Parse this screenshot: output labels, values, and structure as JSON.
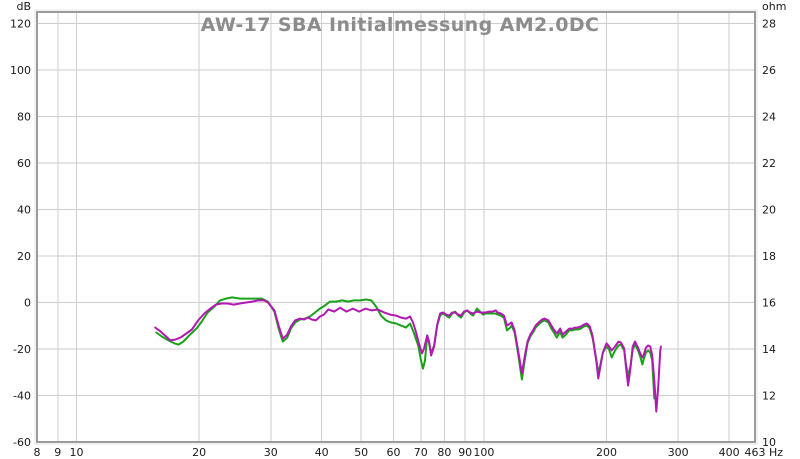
{
  "chart_data": {
    "type": "line",
    "title": "AW-17 SBA Initialmessung AM2.0DC",
    "title_color": "#8c8c8c",
    "background_color": "#ffffff",
    "grid_color": "#cdcdcd",
    "frame_color": "#9b9b9b",
    "legend": "none",
    "x_axis": {
      "unit": "Hz",
      "scale": "log",
      "min": 8,
      "max": 463,
      "tick_labels": [
        8,
        9,
        10,
        20,
        30,
        40,
        50,
        60,
        70,
        80,
        90,
        100,
        200,
        300,
        400,
        463
      ],
      "gridlines": [
        9,
        10,
        20,
        30,
        40,
        50,
        60,
        70,
        80,
        90,
        100,
        200,
        300,
        400
      ]
    },
    "y_axis_left": {
      "unit": "dB",
      "min": -60,
      "max": 125,
      "ticks": [
        120,
        100,
        80,
        60,
        40,
        20,
        0,
        -20,
        -40,
        -60
      ]
    },
    "y_axis_right": {
      "unit": "ohm",
      "ticks": [
        28,
        26,
        24,
        22,
        20,
        18,
        16,
        14,
        12,
        10
      ]
    },
    "series": [
      {
        "name": "green-trace",
        "color": "#1aa11a",
        "points": [
          [
            15.7,
            -12.9
          ],
          [
            16.2,
            -14.6
          ],
          [
            16.8,
            -16.3
          ],
          [
            17.4,
            -17.6
          ],
          [
            17.8,
            -18.1
          ],
          [
            18.3,
            -16.8
          ],
          [
            19,
            -13.8
          ],
          [
            19.7,
            -11.2
          ],
          [
            20.3,
            -8.2
          ],
          [
            21,
            -4.3
          ],
          [
            21.8,
            -1.7
          ],
          [
            22.5,
            0.9
          ],
          [
            23.3,
            1.7
          ],
          [
            24.1,
            2.2
          ],
          [
            25.2,
            1.7
          ],
          [
            26.4,
            1.7
          ],
          [
            27.6,
            1.7
          ],
          [
            28.5,
            1.7
          ],
          [
            29.5,
            0.4
          ],
          [
            30.6,
            -3.9
          ],
          [
            31.4,
            -11.6
          ],
          [
            32.1,
            -16.8
          ],
          [
            32.9,
            -15.1
          ],
          [
            33.6,
            -11.2
          ],
          [
            34.4,
            -8.6
          ],
          [
            35.4,
            -7.3
          ],
          [
            36.4,
            -6.9
          ],
          [
            37.4,
            -6
          ],
          [
            38.5,
            -4.3
          ],
          [
            39.6,
            -2.6
          ],
          [
            40.7,
            -1.3
          ],
          [
            41.9,
            0.4
          ],
          [
            43.4,
            0.4
          ],
          [
            44.9,
            0.9
          ],
          [
            46.4,
            0.4
          ],
          [
            48,
            0.9
          ],
          [
            49.7,
            0.9
          ],
          [
            51.4,
            1.3
          ],
          [
            52.9,
            0.9
          ],
          [
            54.4,
            -1.7
          ],
          [
            55.9,
            -5.6
          ],
          [
            57.5,
            -7.7
          ],
          [
            59.2,
            -8.6
          ],
          [
            60.9,
            -9
          ],
          [
            62.6,
            -9.9
          ],
          [
            64.4,
            -10.8
          ],
          [
            65.9,
            -9
          ],
          [
            67.4,
            -13.3
          ],
          [
            69,
            -18.5
          ],
          [
            70.1,
            -24.9
          ],
          [
            70.9,
            -28.4
          ],
          [
            71.7,
            -24.9
          ],
          [
            72.6,
            -14.2
          ],
          [
            73.4,
            -17.6
          ],
          [
            74.2,
            -21.9
          ],
          [
            75.5,
            -18.5
          ],
          [
            76.8,
            -9.9
          ],
          [
            78.1,
            -5.6
          ],
          [
            79.4,
            -4.7
          ],
          [
            80.8,
            -5.6
          ],
          [
            82.2,
            -6.5
          ],
          [
            83.6,
            -4.7
          ],
          [
            85,
            -3.9
          ],
          [
            86.5,
            -5.6
          ],
          [
            87.9,
            -6.5
          ],
          [
            89.4,
            -4.3
          ],
          [
            91,
            -3.4
          ],
          [
            92.5,
            -4.7
          ],
          [
            94.1,
            -5.6
          ],
          [
            96.2,
            -2.6
          ],
          [
            97.9,
            -3.9
          ],
          [
            99.6,
            -5.2
          ],
          [
            101,
            -4.7
          ],
          [
            103,
            -4.7
          ],
          [
            105,
            -4.7
          ],
          [
            107,
            -4.7
          ],
          [
            108,
            -5.2
          ],
          [
            110,
            -5.6
          ],
          [
            112,
            -6.5
          ],
          [
            114,
            -12
          ],
          [
            116,
            -10.8
          ],
          [
            117,
            -9.9
          ],
          [
            119,
            -12.9
          ],
          [
            121,
            -20.6
          ],
          [
            124,
            -33.1
          ],
          [
            126,
            -24.9
          ],
          [
            128,
            -17.6
          ],
          [
            130,
            -14.6
          ],
          [
            132,
            -12.9
          ],
          [
            134,
            -10.8
          ],
          [
            137,
            -9
          ],
          [
            139,
            -8.2
          ],
          [
            141,
            -7.7
          ],
          [
            144,
            -8.6
          ],
          [
            146,
            -10.8
          ],
          [
            149,
            -13.3
          ],
          [
            151,
            -15.1
          ],
          [
            154,
            -12.5
          ],
          [
            156,
            -15.1
          ],
          [
            159,
            -13.8
          ],
          [
            162,
            -12
          ],
          [
            165,
            -12
          ],
          [
            167,
            -11.6
          ],
          [
            170,
            -11.6
          ],
          [
            173,
            -11.2
          ],
          [
            176,
            -10.3
          ],
          [
            179,
            -9.9
          ],
          [
            182,
            -11.2
          ],
          [
            185,
            -15.5
          ],
          [
            189,
            -24.9
          ],
          [
            191,
            -30.5
          ],
          [
            193,
            -27.1
          ],
          [
            196,
            -21.5
          ],
          [
            200,
            -18.9
          ],
          [
            203,
            -20.2
          ],
          [
            206,
            -23.6
          ],
          [
            210,
            -20.6
          ],
          [
            214,
            -18.5
          ],
          [
            217,
            -18.1
          ],
          [
            221,
            -20.6
          ],
          [
            223,
            -25.8
          ],
          [
            226,
            -31.8
          ],
          [
            229,
            -27.5
          ],
          [
            232,
            -20.2
          ],
          [
            235,
            -18.1
          ],
          [
            239,
            -20.6
          ],
          [
            242,
            -23.2
          ],
          [
            245,
            -26.6
          ],
          [
            247,
            -24.1
          ],
          [
            250,
            -21.5
          ],
          [
            253,
            -20.6
          ],
          [
            256,
            -21.5
          ],
          [
            259,
            -24.9
          ],
          [
            262,
            -41.3
          ]
        ]
      },
      {
        "name": "magenta-trace",
        "color": "#b318b3",
        "points": [
          [
            15.6,
            -10.8
          ],
          [
            16.1,
            -12.5
          ],
          [
            16.6,
            -14.6
          ],
          [
            17,
            -16.3
          ],
          [
            17.5,
            -15.9
          ],
          [
            18,
            -15.1
          ],
          [
            18.6,
            -13.3
          ],
          [
            19.2,
            -11.6
          ],
          [
            19.9,
            -7.7
          ],
          [
            20.6,
            -4.7
          ],
          [
            21.3,
            -2.6
          ],
          [
            22,
            -0.9
          ],
          [
            22.7,
            -0.4
          ],
          [
            23.5,
            -0.4
          ],
          [
            24.3,
            -0.9
          ],
          [
            25.2,
            -0.4
          ],
          [
            26.1,
            0
          ],
          [
            27,
            0.4
          ],
          [
            27.9,
            0.9
          ],
          [
            28.9,
            0.9
          ],
          [
            29.5,
            0
          ],
          [
            30.6,
            -3.4
          ],
          [
            31.4,
            -10.3
          ],
          [
            32.1,
            -15.5
          ],
          [
            32.9,
            -13.8
          ],
          [
            33.6,
            -10.3
          ],
          [
            34.4,
            -7.7
          ],
          [
            35.4,
            -6.9
          ],
          [
            36.2,
            -7.3
          ],
          [
            37,
            -6.5
          ],
          [
            37.8,
            -7.3
          ],
          [
            38.7,
            -7.7
          ],
          [
            39.6,
            -6
          ],
          [
            40.5,
            -5.2
          ],
          [
            41.5,
            -3
          ],
          [
            42.9,
            -3.9
          ],
          [
            44.4,
            -2.2
          ],
          [
            46,
            -3.9
          ],
          [
            47.7,
            -2.6
          ],
          [
            49.4,
            -3.9
          ],
          [
            51.2,
            -2.6
          ],
          [
            53,
            -3.4
          ],
          [
            54.9,
            -3
          ],
          [
            56.9,
            -4.3
          ],
          [
            58.9,
            -5.2
          ],
          [
            60.9,
            -5.6
          ],
          [
            62.6,
            -6.5
          ],
          [
            64.4,
            -6.9
          ],
          [
            65.9,
            -6
          ],
          [
            67,
            -8.6
          ],
          [
            68.2,
            -12.9
          ],
          [
            69.4,
            -18.1
          ],
          [
            70.5,
            -21.9
          ],
          [
            71.3,
            -19.8
          ],
          [
            72.6,
            -14.2
          ],
          [
            73.4,
            -16.8
          ],
          [
            74.2,
            -22.8
          ],
          [
            75.5,
            -18.9
          ],
          [
            76.8,
            -9.5
          ],
          [
            78.1,
            -4.7
          ],
          [
            79.4,
            -4.3
          ],
          [
            80.8,
            -5.2
          ],
          [
            82.2,
            -5.6
          ],
          [
            83.6,
            -4.3
          ],
          [
            85,
            -4.3
          ],
          [
            86.5,
            -5.2
          ],
          [
            87.9,
            -5.6
          ],
          [
            89.4,
            -3.9
          ],
          [
            91,
            -3.4
          ],
          [
            92.5,
            -4.3
          ],
          [
            94.1,
            -4.7
          ],
          [
            96.2,
            -3.9
          ],
          [
            97.9,
            -4.3
          ],
          [
            99.6,
            -4.3
          ],
          [
            101,
            -4.3
          ],
          [
            103,
            -3.9
          ],
          [
            105,
            -3.9
          ],
          [
            107,
            -3.4
          ],
          [
            108,
            -4.3
          ],
          [
            110,
            -4.7
          ],
          [
            112,
            -5.6
          ],
          [
            114,
            -9.9
          ],
          [
            116,
            -9
          ],
          [
            117,
            -8.6
          ],
          [
            119,
            -12
          ],
          [
            121,
            -19.4
          ],
          [
            124,
            -30.5
          ],
          [
            126,
            -23.2
          ],
          [
            128,
            -16.8
          ],
          [
            130,
            -13.8
          ],
          [
            132,
            -12
          ],
          [
            134,
            -9.9
          ],
          [
            137,
            -8.2
          ],
          [
            139,
            -7.3
          ],
          [
            141,
            -6.9
          ],
          [
            144,
            -7.7
          ],
          [
            146,
            -9.5
          ],
          [
            149,
            -12
          ],
          [
            151,
            -13.3
          ],
          [
            154,
            -11.2
          ],
          [
            156,
            -13.8
          ],
          [
            159,
            -12.5
          ],
          [
            162,
            -11.2
          ],
          [
            165,
            -11.2
          ],
          [
            167,
            -10.8
          ],
          [
            170,
            -10.8
          ],
          [
            173,
            -10.3
          ],
          [
            176,
            -9.5
          ],
          [
            179,
            -9
          ],
          [
            182,
            -10.3
          ],
          [
            185,
            -14.6
          ],
          [
            189,
            -25.8
          ],
          [
            191,
            -32.7
          ],
          [
            193,
            -27.9
          ],
          [
            196,
            -21.5
          ],
          [
            200,
            -17.6
          ],
          [
            203,
            -18.9
          ],
          [
            206,
            -20.6
          ],
          [
            210,
            -18.9
          ],
          [
            214,
            -16.8
          ],
          [
            217,
            -17.2
          ],
          [
            221,
            -19.8
          ],
          [
            223,
            -26.6
          ],
          [
            226,
            -35.7
          ],
          [
            229,
            -28.4
          ],
          [
            232,
            -18.9
          ],
          [
            235,
            -16.8
          ],
          [
            239,
            -19.4
          ],
          [
            242,
            -21.9
          ],
          [
            245,
            -23.6
          ],
          [
            247,
            -22.4
          ],
          [
            250,
            -19.4
          ],
          [
            253,
            -18.5
          ],
          [
            256,
            -18.9
          ],
          [
            259,
            -22.8
          ],
          [
            262,
            -33.5
          ],
          [
            265,
            -46.9
          ],
          [
            268,
            -35.7
          ],
          [
            271,
            -21.1
          ],
          [
            272,
            -18.9
          ]
        ]
      }
    ]
  }
}
